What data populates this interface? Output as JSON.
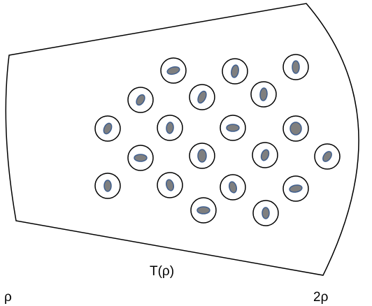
{
  "labels": {
    "left": "ρ",
    "bottom": "T(ρ)",
    "right": "2ρ"
  },
  "colors": {
    "outline": "#000000",
    "nucleus_fill": "#7f7f7f",
    "nucleus_stroke": "#41608f",
    "cell_fill": "#ffffff"
  }
}
